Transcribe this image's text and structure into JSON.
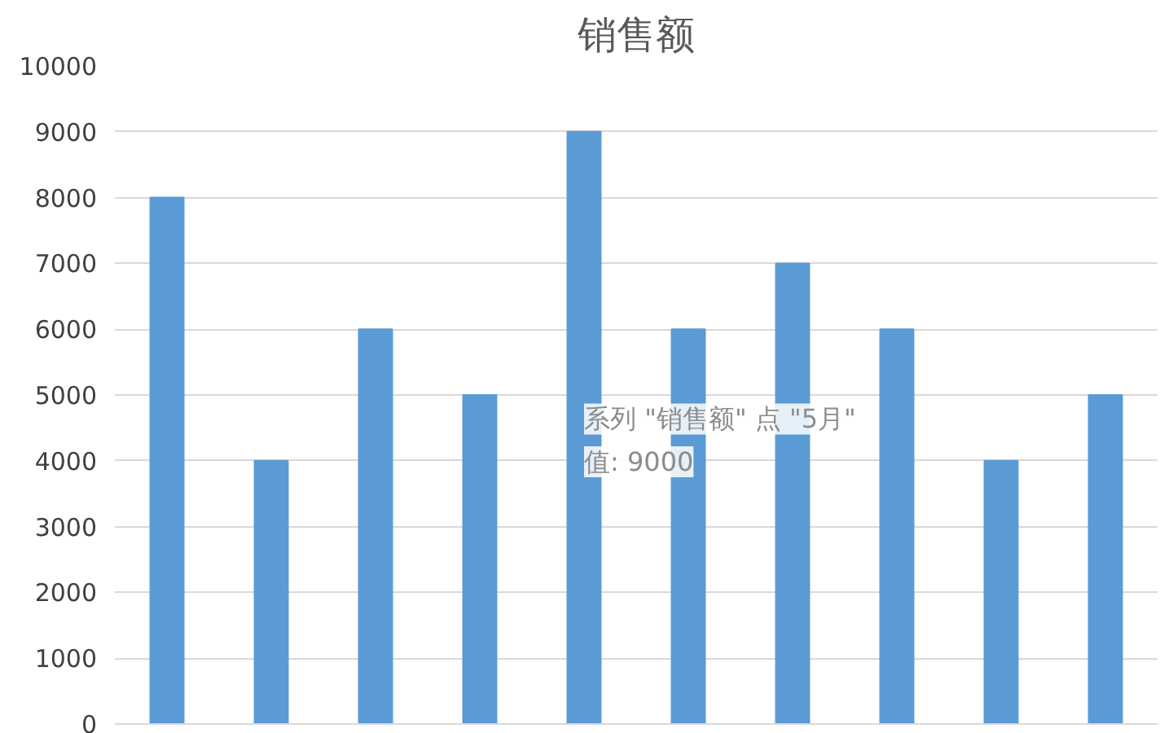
{
  "chart_data": {
    "type": "bar",
    "title": "销售额",
    "categories": [
      null,
      null,
      null,
      null,
      null,
      null,
      null,
      null,
      null,
      null
    ],
    "values": [
      8000,
      4000,
      6000,
      5000,
      9000,
      6000,
      7000,
      6000,
      4000,
      5000
    ],
    "color": "#5b9bd5",
    "ylim": [
      0,
      10000
    ],
    "yticks": [
      0,
      1000,
      2000,
      3000,
      4000,
      5000,
      6000,
      7000,
      8000,
      9000,
      10000
    ],
    "grid": "y",
    "annotations": [
      "系列 \"销售额\" 点 \"5月\"",
      "值: 9000"
    ]
  }
}
